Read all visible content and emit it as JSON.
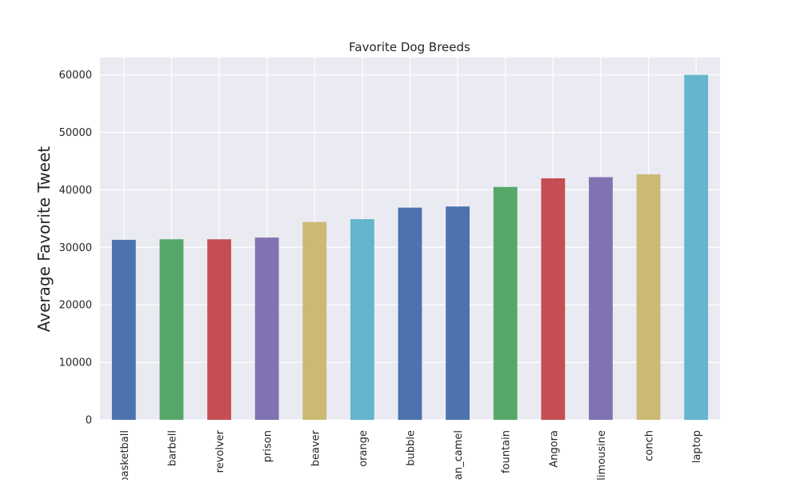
{
  "chart_data": {
    "type": "bar",
    "title": "Favorite Dog Breeds",
    "xlabel": "",
    "ylabel": "Average Favorite Tweet",
    "ylim": [
      0,
      63000
    ],
    "yticks": [
      0,
      10000,
      20000,
      30000,
      40000,
      50000,
      60000
    ],
    "grid": true,
    "legend": "none",
    "categories": [
      "basketball",
      "barbell",
      "revolver",
      "prison",
      "beaver",
      "orange",
      "bubble",
      "Arabian_camel",
      "fountain",
      "Angora",
      "limousine",
      "conch",
      "laptop"
    ],
    "values": [
      31300,
      31400,
      31400,
      31700,
      34400,
      34900,
      36900,
      37100,
      40500,
      42000,
      42200,
      42700,
      60000
    ],
    "colors": [
      "#4c72b0",
      "#55a868",
      "#c44e52",
      "#8172b2",
      "#ccb974",
      "#64b5cd",
      "#4c72b0",
      "#4c72b0",
      "#55a868",
      "#c44e52",
      "#8172b2",
      "#ccb974",
      "#64b5cd"
    ],
    "background": "#eaeaf2",
    "gridcolor": "#ffffff"
  }
}
